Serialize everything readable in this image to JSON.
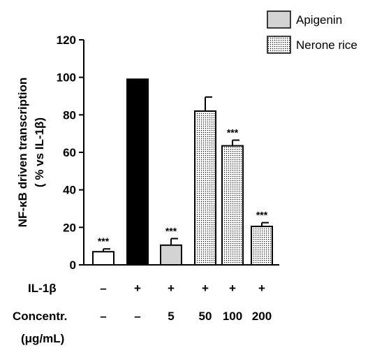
{
  "chart_data": {
    "type": "bar",
    "ylabel_line1": "NF-κB driven transcription",
    "ylabel_line2": "( % vs IL-1β)",
    "ylim": [
      0,
      120
    ],
    "yticks": [
      "0",
      "20",
      "40",
      "60",
      "80",
      "100",
      "120"
    ],
    "yticks_values": [
      0,
      20,
      40,
      60,
      80,
      100,
      120
    ],
    "bars": [
      {
        "value": 7,
        "error": 1.5,
        "fill": "white",
        "significance": "***"
      },
      {
        "value": 99,
        "error": 0,
        "fill": "black",
        "significance": ""
      },
      {
        "value": 10.5,
        "error": 3.5,
        "fill": "gray",
        "significance": "***"
      },
      {
        "value": 82,
        "error": 7.5,
        "fill": "dotted",
        "significance": ""
      },
      {
        "value": 63.5,
        "error": 3,
        "fill": "dotted",
        "significance": "***"
      },
      {
        "value": 20.5,
        "error": 2,
        "fill": "dotted",
        "significance": "***"
      }
    ],
    "legend": [
      {
        "label": "Apigenin",
        "fill": "gray"
      },
      {
        "label": "Nerone rice",
        "fill": "dotted"
      }
    ],
    "condition_rows": [
      {
        "label": "IL-1β",
        "values": [
          "–",
          "+",
          "+",
          "+",
          "+",
          "+"
        ]
      },
      {
        "label_line1": "Concentr.",
        "label_line2": "(μg/mL)",
        "values": [
          "–",
          "–",
          "5",
          "50",
          "100",
          "200"
        ]
      }
    ],
    "colors": {
      "gray": "#d3d3d3",
      "black": "#000000",
      "white": "#ffffff"
    }
  }
}
